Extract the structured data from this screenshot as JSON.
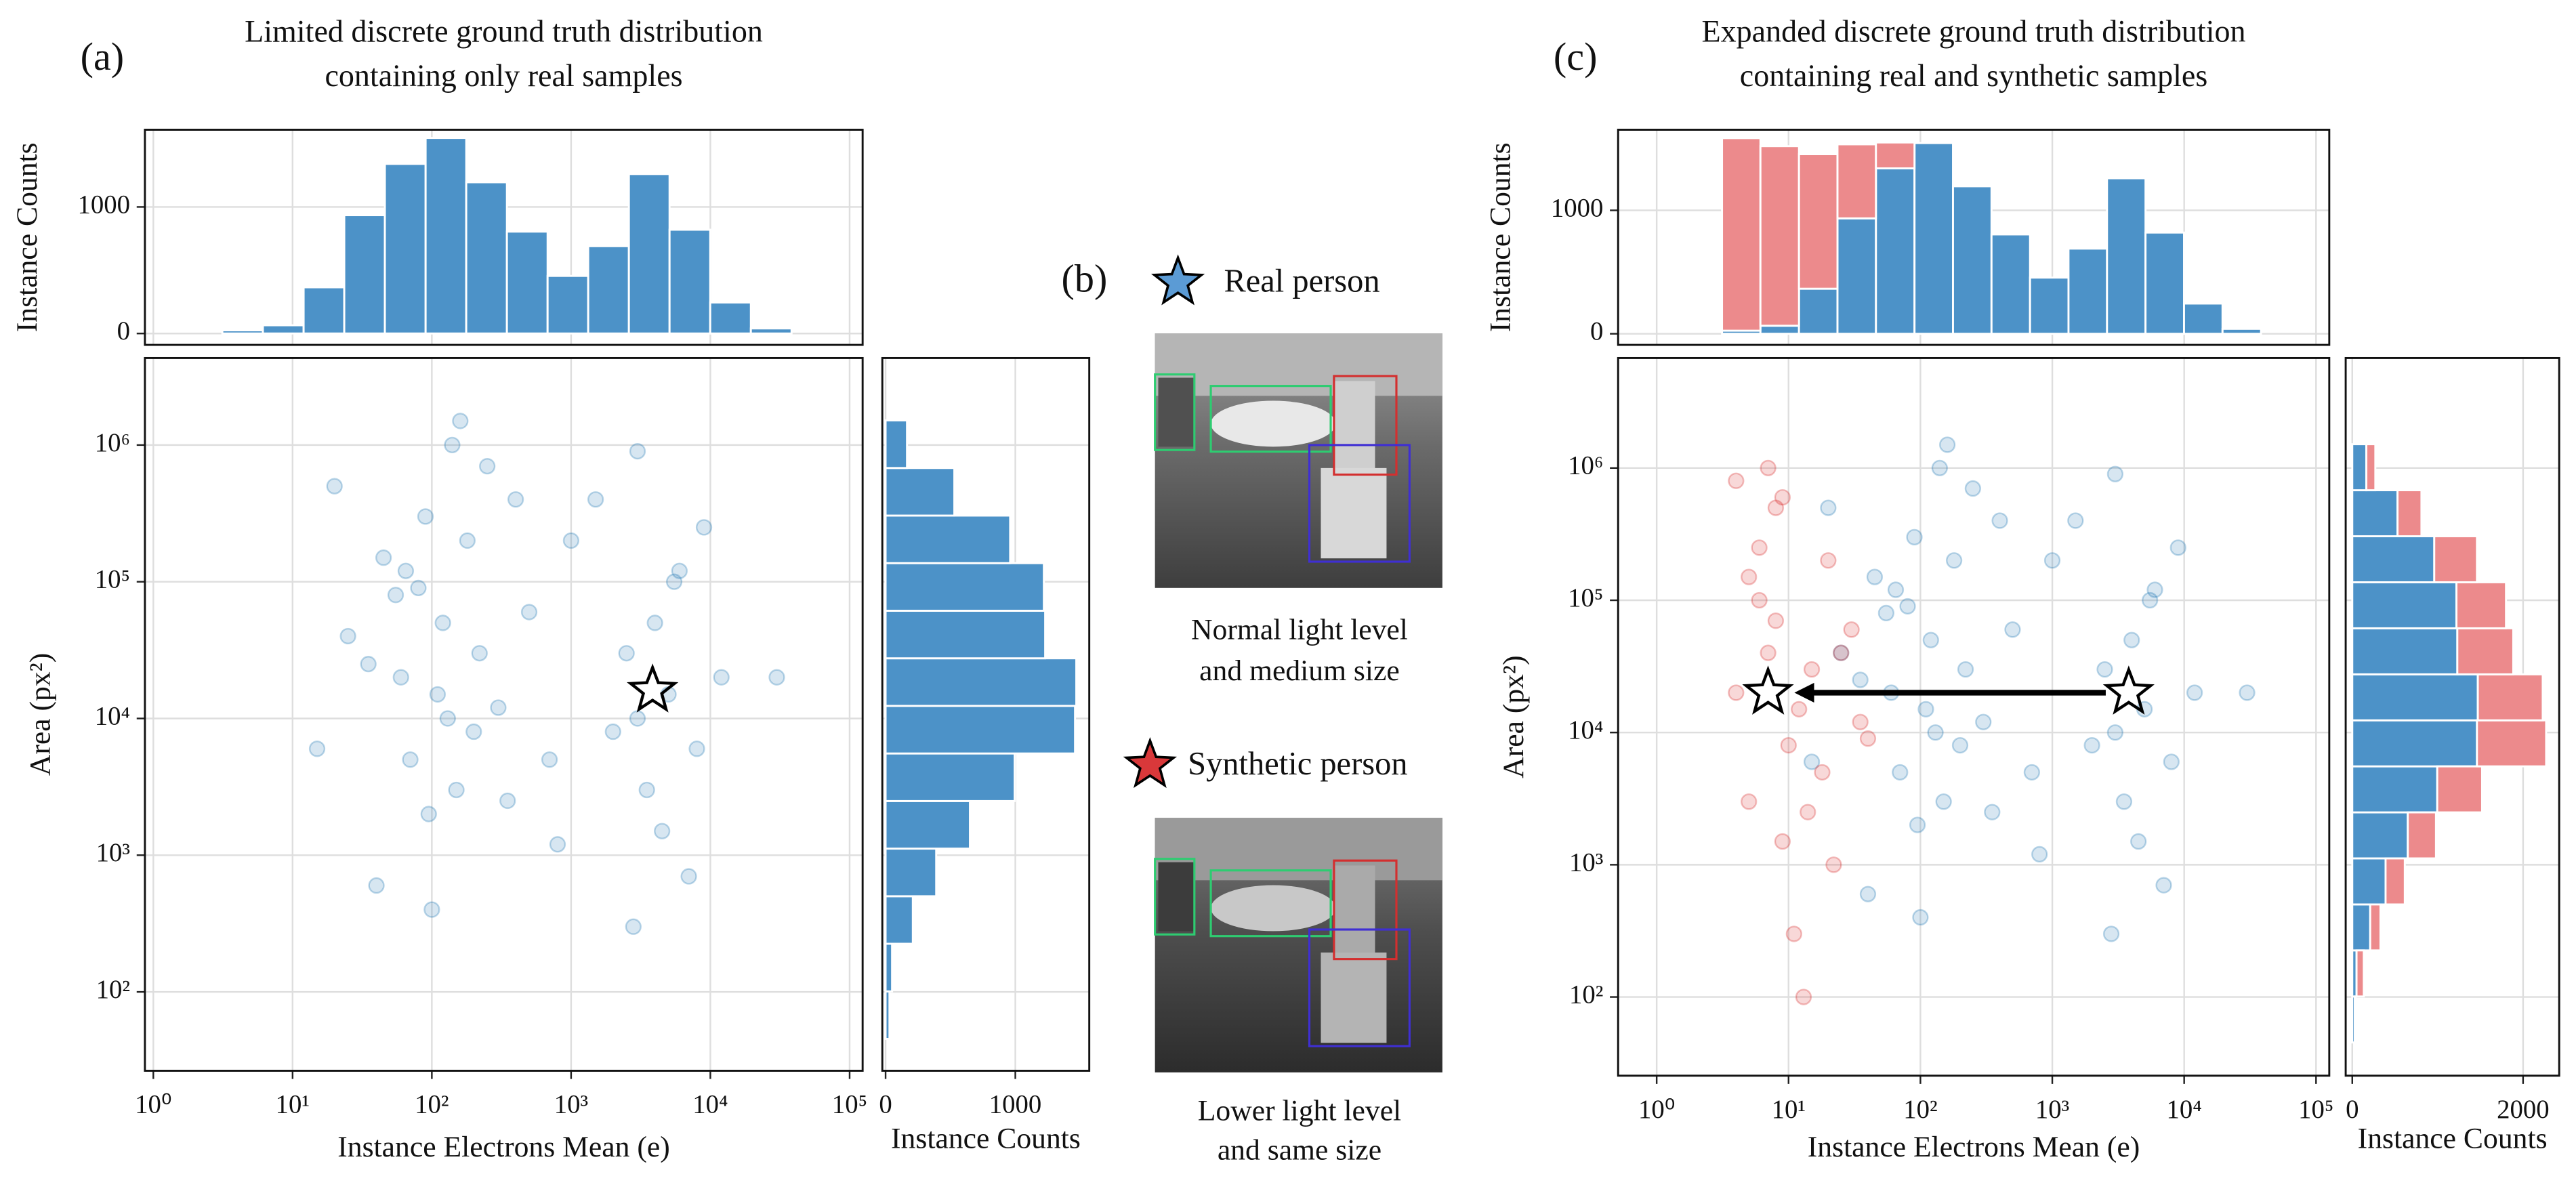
{
  "chart_data": [
    {
      "type": "histogram",
      "panel": "(a)",
      "title": [
        "Limited discrete ground truth distribution",
        "containing only real samples"
      ],
      "ylabel": "Instance Counts",
      "log_x": true,
      "xlim": [
        0.87,
        124000
      ],
      "ylim": [
        -90,
        1610
      ],
      "yticks": [
        0,
        1000
      ],
      "grid": true,
      "bins": [
        3.13,
        6.12,
        12.0,
        23.5,
        46.0,
        90.2,
        176.6,
        346,
        678,
        1327,
        2600,
        5093,
        9977,
        19540,
        38280
      ],
      "series": [
        {
          "color": "#4c92c8",
          "values": [
            25,
            65,
            365,
            935,
            1340,
            1545,
            1195,
            805,
            455,
            690,
            1260,
            820,
            245,
            40
          ]
        }
      ]
    },
    {
      "type": "scatter",
      "xlabel": "Instance Electrons Mean (e)",
      "ylabel": "Area (px²)",
      "log_x": true,
      "log_y": true,
      "xlim": [
        0.87,
        124000
      ],
      "ylim": [
        26.5,
        4330000
      ],
      "grid": true,
      "xticks": [
        {
          "value": 1,
          "label": "10⁰"
        },
        {
          "value": 10,
          "label": "10¹"
        },
        {
          "value": 100,
          "label": "10²"
        },
        {
          "value": 1000,
          "label": "10³"
        },
        {
          "value": 10000,
          "label": "10⁴"
        },
        {
          "value": 100000,
          "label": "10⁵"
        }
      ],
      "yticks": [
        {
          "value": 100,
          "label": "10²"
        },
        {
          "value": 1000,
          "label": "10³"
        },
        {
          "value": 10000,
          "label": "10⁴"
        },
        {
          "value": 100000,
          "label": "10⁵"
        },
        {
          "value": 1000000,
          "label": "10⁶"
        }
      ],
      "series": [
        {
          "color": "#1f77b4",
          "x": [
            60,
            120,
            200,
            45,
            90,
            300,
            150,
            80,
            250,
            35,
            110,
            500,
            70,
            180,
            25,
            140,
            400,
            95,
            55,
            220,
            3000,
            5000,
            2500,
            8000,
            4000,
            3500,
            6000,
            2000,
            12000,
            4500,
            1500,
            7000,
            3000,
            9000,
            15,
            20,
            800,
            1000,
            700,
            30000,
            100,
            160,
            65,
            350,
            2800,
            5500,
            130,
            40
          ],
          "y": [
            20000,
            50000,
            8000,
            150000,
            300000,
            12000,
            3000,
            90000,
            700000,
            25000,
            15000,
            60000,
            5000,
            200000,
            40000,
            1000000,
            400000,
            2000,
            80000,
            30000,
            10000,
            15000,
            30000,
            6000,
            50000,
            3000,
            120000,
            8000,
            20000,
            1500,
            400000,
            700,
            900000,
            250000,
            6000,
            500000,
            1200,
            200000,
            5000,
            20000,
            400,
            1500000,
            120000,
            2500,
            300,
            100000,
            10000,
            600
          ]
        }
      ],
      "markers": [
        {
          "x": 3846,
          "y": 16000
        }
      ]
    },
    {
      "type": "histogram",
      "orientation": "horizontal",
      "xlabel": "Instance Counts",
      "log_y": true,
      "xlim": [
        -25,
        1570
      ],
      "ylim": [
        26.5,
        4330000
      ],
      "xticks": [
        0,
        1000
      ],
      "grid": true,
      "bins": [
        45.3,
        100.9,
        225,
        501,
        1117,
        2489,
        5546,
        12360,
        27540,
        61380,
        136800,
        304800,
        679200,
        1514000
      ],
      "series": [
        {
          "color": "#4c92c8",
          "values": [
            30,
            50,
            210,
            390,
            650,
            995,
            1460,
            1470,
            1230,
            1220,
            960,
            530,
            165
          ]
        }
      ]
    },
    {
      "type": "histogram",
      "panel": "(c)",
      "title": [
        "Expanded discrete ground truth distribution",
        "containing real and synthetic samples"
      ],
      "ylabel": "Instance Counts",
      "log_x": true,
      "xlim": [
        0.51,
        126000
      ],
      "ylim": [
        -90,
        1653
      ],
      "yticks": [
        0,
        1000
      ],
      "grid": true,
      "bins": [
        3.13,
        6.12,
        12.0,
        23.5,
        46.0,
        90.2,
        176.6,
        346,
        678,
        1327,
        2600,
        5093,
        9977,
        19540,
        38280
      ],
      "series": [
        {
          "color": "#4c92c8",
          "values": [
            25,
            65,
            365,
            935,
            1340,
            1545,
            1195,
            805,
            455,
            690,
            1260,
            820,
            245,
            40
          ]
        },
        {
          "color": "#ec8a8c",
          "values": [
            1560,
            1455,
            1090,
            600,
            210,
            0,
            0,
            0,
            0,
            0,
            0,
            0,
            0,
            0
          ]
        }
      ]
    },
    {
      "type": "scatter",
      "xlabel": "Instance Electrons Mean (e)",
      "ylabel": "Area (px²)",
      "log_x": true,
      "log_y": true,
      "xlim": [
        0.51,
        126000
      ],
      "ylim": [
        25.4,
        6790000
      ],
      "grid": true,
      "xticks": [
        {
          "value": 1,
          "label": "10⁰"
        },
        {
          "value": 10,
          "label": "10¹"
        },
        {
          "value": 100,
          "label": "10²"
        },
        {
          "value": 1000,
          "label": "10³"
        },
        {
          "value": 10000,
          "label": "10⁴"
        },
        {
          "value": 100000,
          "label": "10⁵"
        }
      ],
      "yticks": [
        {
          "value": 100,
          "label": "10²"
        },
        {
          "value": 1000,
          "label": "10³"
        },
        {
          "value": 10000,
          "label": "10⁴"
        },
        {
          "value": 100000,
          "label": "10⁵"
        },
        {
          "value": 1000000,
          "label": "10⁶"
        }
      ],
      "series": [
        {
          "color": "#1f77b4",
          "x": [
            60,
            120,
            200,
            45,
            90,
            300,
            150,
            80,
            250,
            35,
            110,
            500,
            70,
            180,
            25,
            140,
            400,
            95,
            55,
            220,
            3000,
            5000,
            2500,
            8000,
            4000,
            3500,
            6000,
            2000,
            12000,
            4500,
            1500,
            7000,
            3000,
            9000,
            15,
            20,
            800,
            1000,
            700,
            30000,
            100,
            160,
            65,
            350,
            2800,
            5500,
            130,
            40
          ],
          "y": [
            20000,
            50000,
            8000,
            150000,
            300000,
            12000,
            3000,
            90000,
            700000,
            25000,
            15000,
            60000,
            5000,
            200000,
            40000,
            1000000,
            400000,
            2000,
            80000,
            30000,
            10000,
            15000,
            30000,
            6000,
            50000,
            3000,
            120000,
            8000,
            20000,
            1500,
            400000,
            700,
            900000,
            250000,
            6000,
            500000,
            1200,
            200000,
            5000,
            20000,
            400,
            1500000,
            120000,
            2500,
            300,
            100000,
            10000,
            600
          ]
        },
        {
          "color": "#d62728",
          "x": [
            4,
            6,
            8,
            10,
            15,
            20,
            30,
            5,
            7,
            12,
            9,
            25,
            4,
            18,
            6,
            35,
            11,
            8,
            5,
            14,
            22,
            7,
            9,
            40,
            13
          ],
          "y": [
            20000,
            100000,
            500000,
            8000,
            30000,
            200000,
            60000,
            3000,
            1000000,
            15000,
            1500,
            40000,
            800000,
            5000,
            250000,
            12000,
            300,
            70000,
            150000,
            2500,
            1000,
            40000,
            600000,
            9000,
            100
          ]
        }
      ],
      "markers": [
        {
          "x": 3800,
          "y": 20000
        },
        {
          "x": 7,
          "y": 20000
        }
      ]
    },
    {
      "type": "histogram",
      "orientation": "horizontal",
      "xlabel": "Instance Counts",
      "log_y": true,
      "xlim": [
        -77,
        2423
      ],
      "ylim": [
        25.4,
        6790000
      ],
      "xticks": [
        0,
        2000
      ],
      "grid": true,
      "bins": [
        45.3,
        100.9,
        225,
        501,
        1117,
        2489,
        5546,
        12360,
        27540,
        61380,
        136800,
        304800,
        679200,
        1514000
      ],
      "series": [
        {
          "color": "#4c92c8",
          "values": [
            30,
            50,
            210,
            390,
            650,
            995,
            1460,
            1470,
            1230,
            1220,
            960,
            530,
            165
          ]
        },
        {
          "color": "#ec8a8c",
          "values": [
            10,
            85,
            120,
            225,
            330,
            525,
            810,
            760,
            655,
            580,
            500,
            280,
            105
          ]
        }
      ]
    }
  ],
  "panel_b": {
    "label": "(b)",
    "items": [
      {
        "legend": "Real person",
        "color": "#5b9bd5",
        "caption": [
          "Normal light level",
          "and medium size"
        ]
      },
      {
        "legend": "Synthetic person",
        "color": "#d9383a",
        "caption": [
          "Lower light level",
          "and same size"
        ]
      }
    ]
  }
}
